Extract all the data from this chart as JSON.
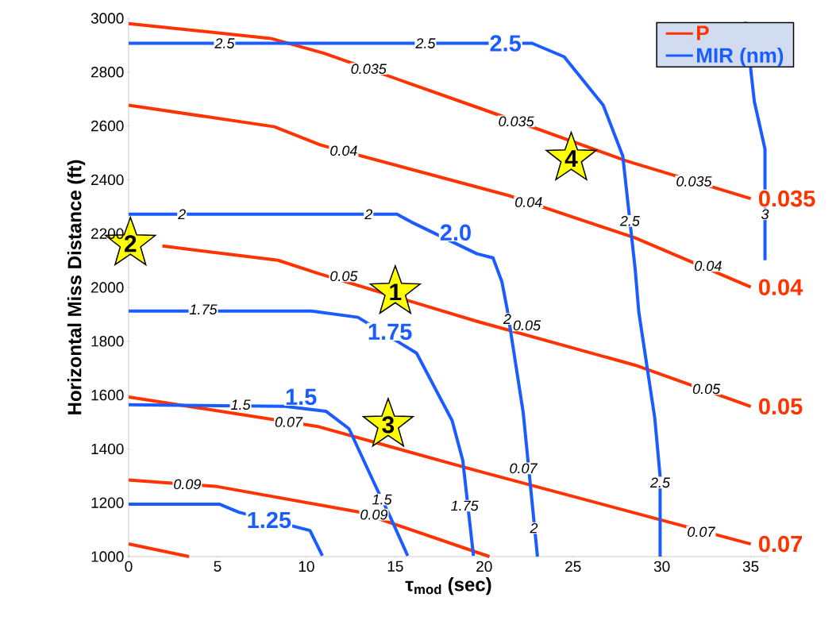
{
  "chart_data": {
    "type": "line",
    "xlabel": "τ$_{mod}$ (sec)",
    "ylabel": "Horizontal Miss Distance (ft)",
    "xlim": [
      0,
      36
    ],
    "ylim": [
      1000,
      3000
    ],
    "xticks": [
      0,
      5,
      10,
      15,
      20,
      25,
      30,
      35
    ],
    "yticks": [
      1000,
      1200,
      1400,
      1600,
      1800,
      2000,
      2200,
      2400,
      2600,
      2800,
      3000
    ],
    "legend": "top right",
    "grid": false,
    "series": [
      {
        "name": "P",
        "color": "#ff3300",
        "x": [
          0,
          8,
          11,
          20,
          28,
          35
        ],
        "values": [
          2980,
          2925,
          2870,
          2660,
          2470,
          2330
        ]
      },
      {
        "color": "#ff3300",
        "x": [
          0,
          8.2,
          10.8,
          21.3,
          28.5,
          35
        ],
        "values": [
          2677,
          2597,
          2529,
          2343,
          2184,
          2001
        ]
      },
      {
        "color": "#ff3300",
        "x": [
          1.9,
          8.4,
          10.7,
          19.6,
          28.5,
          35
        ],
        "values": [
          2154,
          2101,
          2051,
          1874,
          1711,
          1558
        ]
      },
      {
        "color": "#ff3300",
        "x": [
          0,
          10.6,
          19.6,
          35
        ],
        "values": [
          1593,
          1484,
          1319,
          1047
        ]
      },
      {
        "color": "#ff3300",
        "x": [
          0,
          5,
          13,
          20.3
        ],
        "values": [
          1285,
          1260,
          1165,
          1000
        ]
      },
      {
        "color": "#ff3300",
        "x": [
          0,
          3.4
        ],
        "values": [
          1047,
          1000
        ]
      },
      {
        "name": "MIR (nm)",
        "color": "#1a5cff",
        "x": [
          0,
          22.7,
          24.5,
          26.7,
          27.8,
          28.5,
          28.7,
          29.6,
          29.9,
          29.9
        ],
        "values": [
          2907,
          2907,
          2857,
          2677,
          2488,
          2066,
          1909,
          1514,
          1298,
          1000
        ]
      },
      {
        "color": "#1a5cff",
        "x": [
          34.7,
          35.2,
          35.8,
          35.8
        ],
        "values": [
          2987,
          2691,
          2514,
          2101
        ]
      },
      {
        "color": "#1a5cff",
        "x": [
          0,
          15.1,
          15.9,
          19.6,
          20.5,
          21.0,
          21.3,
          22.2,
          23.0
        ],
        "values": [
          2272,
          2272,
          2243,
          2125,
          2110,
          2021,
          1918,
          1534,
          1000
        ]
      },
      {
        "color": "#1a5cff",
        "x": [
          0,
          10.3,
          12.9,
          16.2,
          18.2,
          18.8,
          19.4
        ],
        "values": [
          1912,
          1912,
          1889,
          1756,
          1505,
          1357,
          1003
        ]
      },
      {
        "color": "#1a5cff",
        "x": [
          0,
          8.8,
          11.1,
          12.4,
          13.8,
          14.7,
          15.7
        ],
        "values": [
          1564,
          1558,
          1540,
          1475,
          1275,
          1150,
          1003
        ]
      },
      {
        "color": "#1a5cff",
        "x": [
          0,
          5.1,
          6.2,
          10.2,
          10.9
        ],
        "values": [
          1195,
          1195,
          1165,
          1097,
          1003
        ]
      },
      {
        "type": "scatter",
        "marker": "star",
        "color": "#ffff00",
        "x": [
          15,
          0.1,
          14.6,
          24.9
        ],
        "values": [
          1983,
          2163,
          1490,
          2479
        ]
      }
    ],
    "annotations": [
      {
        "text": "2.5",
        "x": 5.4,
        "y": 2907
      },
      {
        "text": "2.5",
        "x": 16.7,
        "y": 2907
      },
      {
        "text": "0.035",
        "x": 13.5,
        "y": 2812
      },
      {
        "text": "0.035",
        "x": 21.8,
        "y": 2617
      },
      {
        "text": "0.035",
        "x": 31.8,
        "y": 2394
      },
      {
        "text": "0.04",
        "x": 12.1,
        "y": 2508
      },
      {
        "text": "0.04",
        "x": 22.5,
        "y": 2317
      },
      {
        "text": "0.04",
        "x": 32.6,
        "y": 2080
      },
      {
        "text": "2",
        "x": 3.0,
        "y": 2272
      },
      {
        "text": "2",
        "x": 13.5,
        "y": 2272
      },
      {
        "text": "0.05",
        "x": 12.1,
        "y": 2042
      },
      {
        "text": "0.05",
        "x": 22.4,
        "y": 1859
      },
      {
        "text": "0.05",
        "x": 32.5,
        "y": 1623
      },
      {
        "text": "2",
        "x": 21.3,
        "y": 1883
      },
      {
        "text": "2",
        "x": 22.8,
        "y": 1106
      },
      {
        "text": "1.75",
        "x": 4.2,
        "y": 1918
      },
      {
        "text": "1.75",
        "x": 18.9,
        "y": 1189
      },
      {
        "text": "1.5",
        "x": 6.3,
        "y": 1564
      },
      {
        "text": "1.5",
        "x": 14.25,
        "y": 1212
      },
      {
        "text": "0.07",
        "x": 9,
        "y": 1500
      },
      {
        "text": "0.07",
        "x": 22.2,
        "y": 1328
      },
      {
        "text": "0.07",
        "x": 32.2,
        "y": 1092
      },
      {
        "text": "0.09",
        "x": 3.3,
        "y": 1269
      },
      {
        "text": "0.09",
        "x": 13.8,
        "y": 1156
      },
      {
        "text": "2.5",
        "x": 28.2,
        "y": 2247
      },
      {
        "text": "2.5",
        "x": 29.9,
        "y": 1275
      },
      {
        "text": "3",
        "x": 35.8,
        "y": 2272
      },
      {
        "text": "**2.5**",
        "x": 21.2,
        "y": 2907
      },
      {
        "text": "**2.0**",
        "x": 18.4,
        "y": 2204
      },
      {
        "text": "**1.75**",
        "x": 14.7,
        "y": 1835
      },
      {
        "text": "**1.5**",
        "x": 9.7,
        "y": 1593
      },
      {
        "text": "**1.25**",
        "x": 7.9,
        "y": 1136
      },
      {
        "text": "1",
        "x": 15,
        "y": 1983
      },
      {
        "text": "2",
        "x": 0.1,
        "y": 2163
      },
      {
        "text": "3",
        "x": 14.6,
        "y": 1490
      },
      {
        "text": "4",
        "x": 24.9,
        "y": 2479
      },
      {
        "text": "**0.035**",
        "x": 35,
        "y": 2330
      },
      {
        "text": "**0.04**",
        "x": 35,
        "y": 2001
      },
      {
        "text": "**0.05**",
        "x": 35,
        "y": 1558
      },
      {
        "text": "**0.07**",
        "x": 35,
        "y": 1047
      }
    ]
  }
}
